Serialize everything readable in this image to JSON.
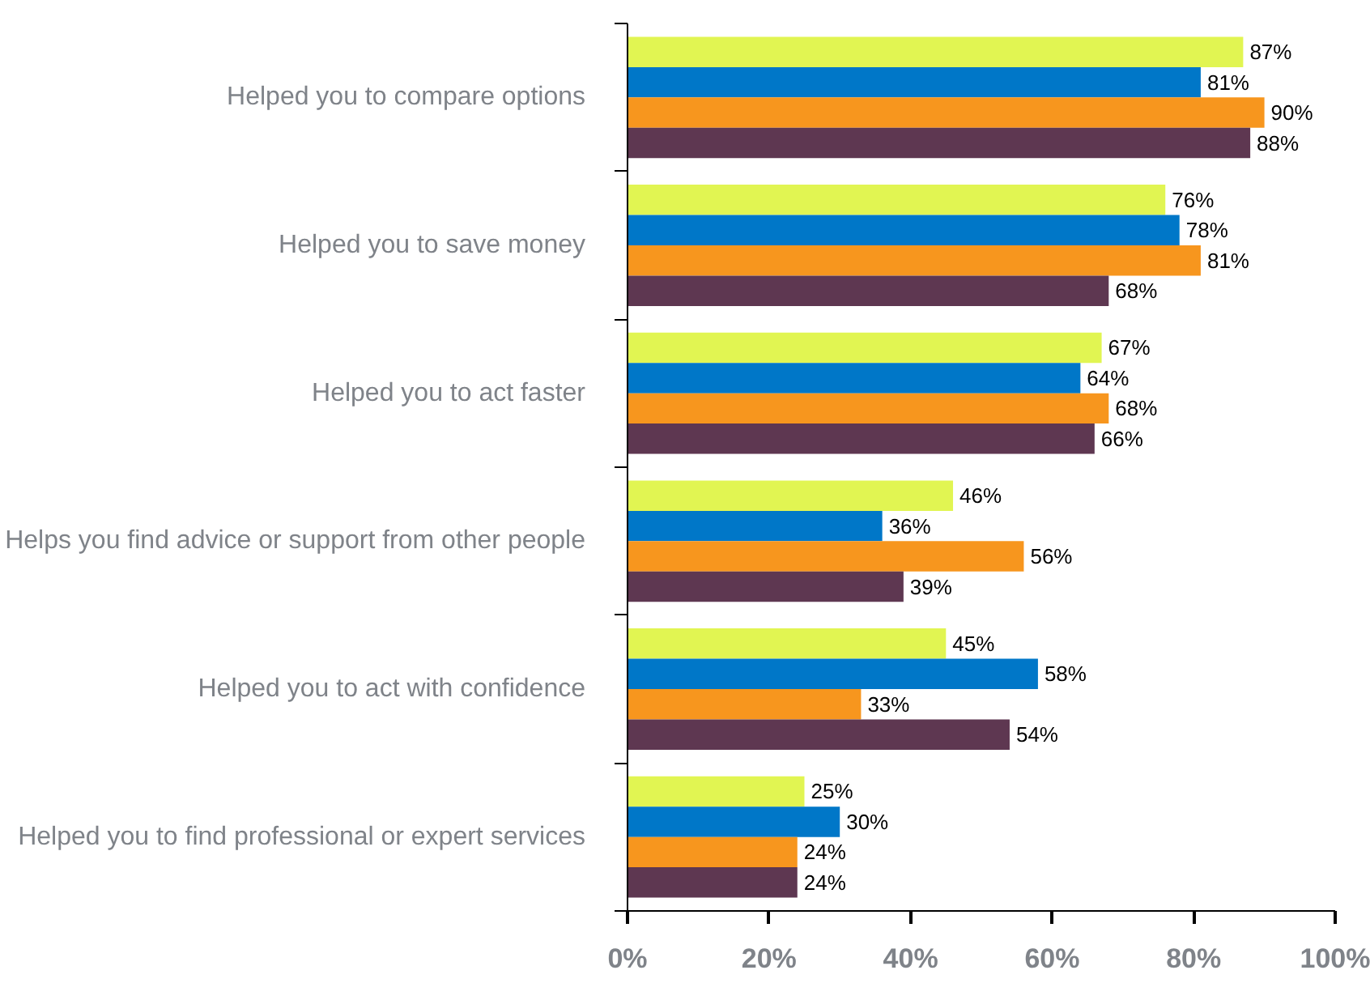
{
  "chart_data": {
    "type": "bar",
    "orientation": "horizontal",
    "categories": [
      "Helped you to compare options",
      "Helped you to save money",
      "Helped you to act faster",
      "Helps you find advice or support from other people",
      "Helped you to act with confidence",
      "Helped you to find professional or expert services"
    ],
    "series": [
      {
        "color": "#e1f552",
        "values": [
          87,
          76,
          67,
          46,
          45,
          25
        ],
        "value_labels": [
          "87%",
          "76%",
          "67%",
          "46%",
          "45%",
          "25%"
        ]
      },
      {
        "color": "#0077c8",
        "values": [
          81,
          78,
          64,
          36,
          58,
          30
        ],
        "value_labels": [
          "81%",
          "78%",
          "64%",
          "36%",
          "58%",
          "30%"
        ]
      },
      {
        "color": "#f7961e",
        "values": [
          90,
          81,
          68,
          56,
          33,
          24
        ],
        "value_labels": [
          "90%",
          "81%",
          "68%",
          "56%",
          "33%",
          "24%"
        ]
      },
      {
        "color": "#5e3751",
        "values": [
          88,
          68,
          66,
          39,
          54,
          24
        ],
        "value_labels": [
          "88%",
          "68%",
          "66%",
          "39%",
          "54%",
          "24%"
        ]
      }
    ],
    "xlim": [
      0,
      100
    ],
    "xticks": [
      {
        "value": 0,
        "label": "0%"
      },
      {
        "value": 20,
        "label": "20%"
      },
      {
        "value": 40,
        "label": "40%"
      },
      {
        "value": 60,
        "label": "60%"
      },
      {
        "value": 80,
        "label": "80%"
      },
      {
        "value": 100,
        "label": "100%"
      }
    ],
    "grid": false
  }
}
